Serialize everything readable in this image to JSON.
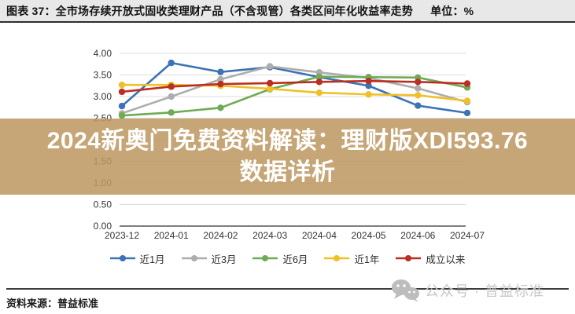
{
  "header": {
    "title": "图表 37：全市场存续开放式固收类理财产品（不含现管）各类区间年化收益率走势",
    "unit_label": "单位：%"
  },
  "overlay_banner": {
    "line1": "2024新奥门免费资料解读：理财版XDI593.76",
    "line2": "数据详析",
    "bg_color": "#BD9760",
    "bg_opacity": 0.86,
    "text_color": "#FFFFFF"
  },
  "chart_data": {
    "type": "line",
    "title": "",
    "categories": [
      "2023-12",
      "2024-01",
      "2024-02",
      "2024-03",
      "2024-04",
      "2024-05",
      "2024-06",
      "2024-07"
    ],
    "series": [
      {
        "name": "近1月",
        "color": "#3D72B4",
        "values": [
          2.78,
          3.78,
          3.57,
          3.68,
          3.45,
          3.25,
          2.79,
          2.62
        ]
      },
      {
        "name": "近3月",
        "color": "#ADADAD",
        "values": [
          2.61,
          3.0,
          3.4,
          3.7,
          3.56,
          3.43,
          3.19,
          2.87
        ]
      },
      {
        "name": "近6月",
        "color": "#6FAB55",
        "values": [
          2.56,
          2.63,
          2.74,
          3.17,
          3.46,
          3.45,
          3.44,
          3.21
        ]
      },
      {
        "name": "近1年",
        "color": "#F0C029",
        "values": [
          3.27,
          3.27,
          3.25,
          3.18,
          3.09,
          3.05,
          3.03,
          2.9
        ]
      },
      {
        "name": "成立以来",
        "color": "#BB2E22",
        "values": [
          3.11,
          3.23,
          3.29,
          3.31,
          3.34,
          3.36,
          3.34,
          3.3
        ]
      }
    ],
    "xlabel": "",
    "ylabel": "",
    "ylim": [
      0,
      4
    ],
    "ytick_step": 0.5,
    "grid": true,
    "grid_color": "#DCDCDC",
    "axis_color": "#6B6B6B",
    "tick_label_color": "#333333",
    "legend_position": "bottom",
    "marker": "circle"
  },
  "footer": {
    "source": "资料来源：普益标准",
    "watermark_icon": "wechat-icon",
    "watermark": "公众号 · 普益标准"
  }
}
